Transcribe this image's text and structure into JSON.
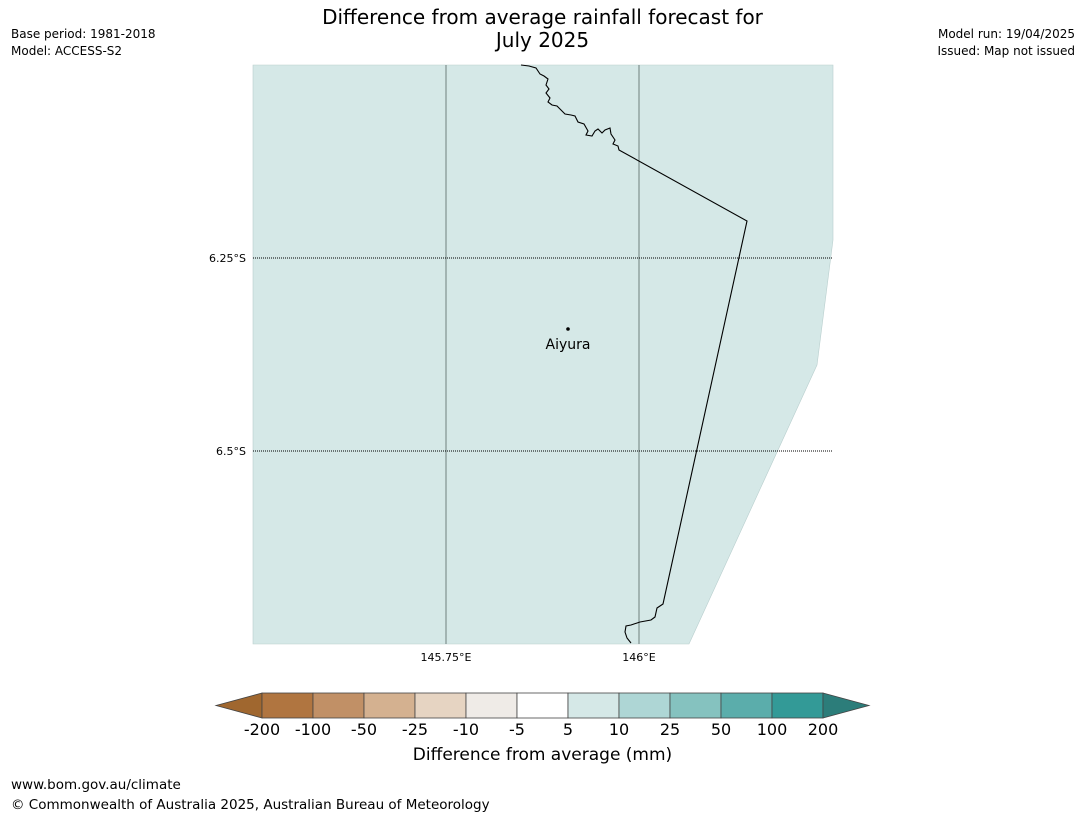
{
  "header": {
    "base_period": "Base period: 1981-2018",
    "model": "Model: ACCESS-S2",
    "model_run": "Model run: 19/04/2025",
    "issued": "Issued: Map not issued"
  },
  "title": {
    "line1": "Difference from average rainfall forecast for",
    "line2": "July 2025"
  },
  "map": {
    "latitude_labels": [
      "6.25°S",
      "6.5°S"
    ],
    "longitude_labels": [
      "145.75°E",
      "146°E"
    ],
    "place": "Aiyura",
    "fill_color": "#d5e8e7"
  },
  "colorbar": {
    "title": "Difference from average (mm)",
    "tick_labels": [
      "-200",
      "-100",
      "-50",
      "-25",
      "-10",
      "-5",
      "5",
      "10",
      "25",
      "50",
      "100",
      "200"
    ],
    "colors": [
      "#a0672f",
      "#b07540",
      "#c19066",
      "#d4b190",
      "#e6d4c2",
      "#efebe7",
      "#ffffff",
      "#d5e8e7",
      "#aed6d5",
      "#85c2bf",
      "#5badab",
      "#339a97",
      "#2c7d7a"
    ]
  },
  "footer": {
    "url": "www.bom.gov.au/climate",
    "copyright": "© Commonwealth of Australia 2025, Australian Bureau of Meteorology"
  }
}
